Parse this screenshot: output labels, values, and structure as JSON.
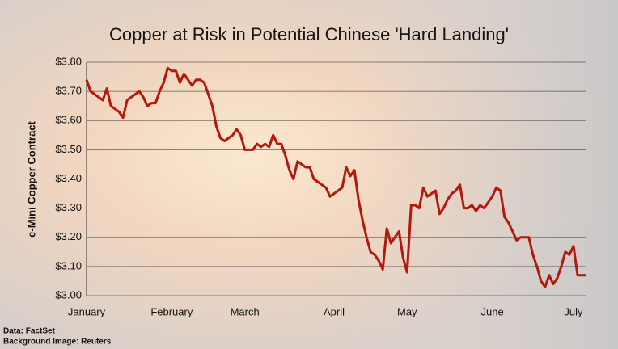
{
  "chart_data": {
    "type": "line",
    "title": "Copper at Risk in Potential Chinese 'Hard Landing'",
    "y_label": "e-Mini Copper Contract",
    "notes": [
      "Data: FactSet",
      "Background Image: Reuters"
    ],
    "categories": [
      "January",
      null,
      null,
      null,
      null,
      null,
      null,
      null,
      null,
      null,
      null,
      null,
      null,
      null,
      null,
      null,
      null,
      null,
      null,
      null,
      null,
      "February",
      null,
      null,
      null,
      null,
      null,
      null,
      null,
      null,
      null,
      null,
      null,
      null,
      null,
      null,
      null,
      null,
      null,
      "March",
      null,
      null,
      null,
      null,
      null,
      null,
      null,
      null,
      null,
      null,
      null,
      null,
      null,
      null,
      null,
      null,
      null,
      null,
      null,
      null,
      null,
      "April",
      null,
      null,
      null,
      null,
      null,
      null,
      null,
      null,
      null,
      null,
      null,
      null,
      null,
      null,
      null,
      null,
      null,
      "May",
      null,
      null,
      null,
      null,
      null,
      null,
      null,
      null,
      null,
      null,
      null,
      null,
      null,
      null,
      null,
      null,
      null,
      null,
      null,
      null,
      "June",
      null,
      null,
      null,
      null,
      null,
      null,
      null,
      null,
      null,
      null,
      null,
      null,
      null,
      null,
      null,
      null,
      null,
      null,
      null,
      "July",
      null,
      null,
      null
    ],
    "series": [
      {
        "name": "e-Mini Copper",
        "color": "#b3180c",
        "values": [
          3.74,
          3.7,
          3.69,
          3.68,
          3.67,
          3.71,
          3.65,
          3.64,
          3.63,
          3.61,
          3.67,
          3.68,
          3.69,
          3.7,
          3.68,
          3.65,
          3.66,
          3.66,
          3.7,
          3.73,
          3.78,
          3.77,
          3.77,
          3.73,
          3.76,
          3.74,
          3.72,
          3.74,
          3.74,
          3.73,
          3.69,
          3.65,
          3.58,
          3.54,
          3.53,
          3.54,
          3.55,
          3.57,
          3.55,
          3.5,
          3.5,
          3.5,
          3.52,
          3.51,
          3.52,
          3.51,
          3.55,
          3.52,
          3.52,
          3.48,
          3.43,
          3.4,
          3.46,
          3.45,
          3.44,
          3.44,
          3.4,
          3.39,
          3.38,
          3.37,
          3.34,
          3.35,
          3.36,
          3.37,
          3.44,
          3.41,
          3.43,
          3.33,
          3.26,
          3.2,
          3.15,
          3.14,
          3.12,
          3.09,
          3.23,
          3.18,
          3.2,
          3.22,
          3.13,
          3.08,
          3.31,
          3.31,
          3.3,
          3.37,
          3.34,
          3.35,
          3.36,
          3.28,
          3.3,
          3.33,
          3.35,
          3.36,
          3.38,
          3.3,
          3.3,
          3.31,
          3.29,
          3.31,
          3.3,
          3.32,
          3.34,
          3.37,
          3.36,
          3.27,
          3.25,
          3.22,
          3.19,
          3.2,
          3.2,
          3.2,
          3.14,
          3.1,
          3.05,
          3.03,
          3.07,
          3.04,
          3.06,
          3.1,
          3.15,
          3.14,
          3.17,
          3.07,
          3.07,
          3.07
        ]
      }
    ],
    "ylim": [
      3.0,
      3.8
    ],
    "yticks": [
      {
        "value": 3.0,
        "label": "$3.00"
      },
      {
        "value": 3.1,
        "label": "$3.10"
      },
      {
        "value": 3.2,
        "label": "$3.20"
      },
      {
        "value": 3.3,
        "label": "$3.30"
      },
      {
        "value": 3.4,
        "label": "$3.40"
      },
      {
        "value": 3.5,
        "label": "$3.50"
      },
      {
        "value": 3.6,
        "label": "$3.60"
      },
      {
        "value": 3.7,
        "label": "$3.70"
      },
      {
        "value": 3.8,
        "label": "$3.80"
      }
    ],
    "grid": true
  }
}
